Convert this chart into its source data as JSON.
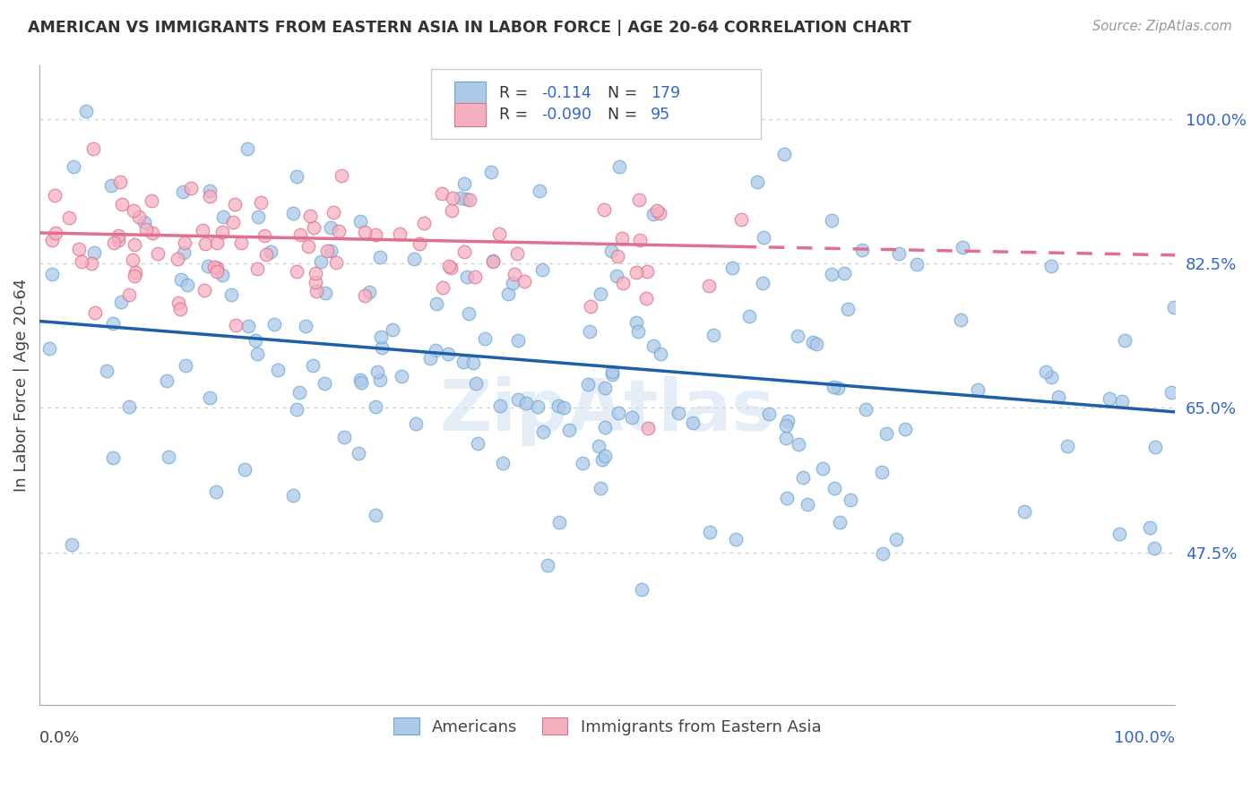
{
  "title": "AMERICAN VS IMMIGRANTS FROM EASTERN ASIA IN LABOR FORCE | AGE 20-64 CORRELATION CHART",
  "source": "Source: ZipAtlas.com",
  "ylabel": "In Labor Force | Age 20-64",
  "yticks": [
    0.475,
    0.65,
    0.825,
    1.0
  ],
  "ytick_labels": [
    "47.5%",
    "65.0%",
    "82.5%",
    "100.0%"
  ],
  "xlim": [
    0.0,
    1.0
  ],
  "ylim": [
    0.29,
    1.065
  ],
  "americans": {
    "label": "Americans",
    "face_color": "#adc8e8",
    "edge_color": "#6aaad8",
    "R": -0.114,
    "N": 179,
    "line_color": "#1e5fa8",
    "trend_start_y": 0.755,
    "trend_end_y": 0.645
  },
  "immigrants": {
    "label": "Immigrants from Eastern Asia",
    "face_color": "#f5b0c0",
    "edge_color": "#e07090",
    "R": -0.09,
    "N": 95,
    "line_color": "#e07090",
    "trend_start_y": 0.862,
    "trend_end_y": 0.835
  },
  "background_color": "#ffffff",
  "grid_color": "#cccccc",
  "ytick_color": "#3366cc",
  "title_color": "#333333",
  "source_color": "#999999",
  "legend_text_color": "#333333",
  "legend_value_color": "#3366cc"
}
